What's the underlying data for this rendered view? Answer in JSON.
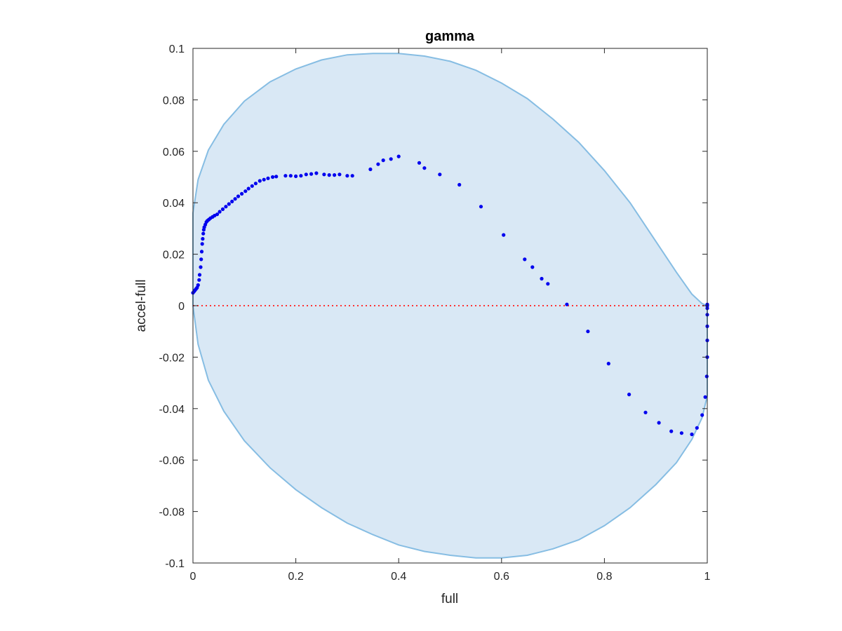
{
  "chart_data": {
    "type": "scatter",
    "title": "gamma",
    "xlabel": "full",
    "ylabel": "accel-full",
    "xlim": [
      0,
      1
    ],
    "ylim": [
      -0.1,
      0.1
    ],
    "xticks": [
      0,
      0.2,
      0.4,
      0.6,
      0.8,
      1
    ],
    "xtick_labels": [
      "0",
      "0.2",
      "0.4",
      "0.6",
      "0.8",
      "1"
    ],
    "yticks": [
      -0.1,
      -0.08,
      -0.06,
      -0.04,
      -0.02,
      0,
      0.02,
      0.04,
      0.06,
      0.08,
      0.1
    ],
    "ytick_labels": [
      "-0.1",
      "-0.08",
      "-0.06",
      "-0.04",
      "-0.02",
      "0",
      "0.02",
      "0.04",
      "0.06",
      "0.08",
      "0.1"
    ],
    "grid": false,
    "box": true,
    "colors": {
      "region_fill": "#d9e8f5",
      "region_edge": "#86bde3",
      "points": "#0000ee",
      "zero_line": "#ff3333",
      "axes": "#262626"
    },
    "region": {
      "name": "",
      "upper": {
        "x": [
          0,
          0.01,
          0.03,
          0.06,
          0.1,
          0.15,
          0.2,
          0.25,
          0.3,
          0.35,
          0.4,
          0.45,
          0.5,
          0.55,
          0.6,
          0.65,
          0.7,
          0.75,
          0.8,
          0.85,
          0.9,
          0.94,
          0.97,
          0.99,
          1
        ],
        "y": [
          0.036,
          0.049,
          0.0605,
          0.0705,
          0.0795,
          0.087,
          0.092,
          0.0955,
          0.0975,
          0.098,
          0.098,
          0.097,
          0.095,
          0.0915,
          0.0865,
          0.0805,
          0.0725,
          0.0635,
          0.0525,
          0.04,
          0.025,
          0.013,
          0.0045,
          0.0008,
          0
        ]
      },
      "lower": {
        "x": [
          0,
          0.01,
          0.03,
          0.06,
          0.1,
          0.15,
          0.2,
          0.25,
          0.3,
          0.35,
          0.4,
          0.45,
          0.5,
          0.55,
          0.6,
          0.65,
          0.7,
          0.75,
          0.8,
          0.85,
          0.9,
          0.94,
          0.97,
          0.99,
          1
        ],
        "y": [
          0,
          -0.015,
          -0.029,
          -0.041,
          -0.0525,
          -0.063,
          -0.0715,
          -0.0785,
          -0.0845,
          -0.089,
          -0.093,
          -0.0955,
          -0.097,
          -0.098,
          -0.098,
          -0.097,
          -0.0945,
          -0.091,
          -0.0855,
          -0.0785,
          -0.0695,
          -0.061,
          -0.052,
          -0.0435,
          -0.035
        ]
      }
    },
    "zero_line": {
      "y": 0,
      "style": "dotted"
    },
    "series": [
      {
        "name": "",
        "x": [
          0,
          0.002,
          0.004,
          0.006,
          0.008,
          0.01,
          0.012,
          0.013,
          0.015,
          0.016,
          0.017,
          0.018,
          0.019,
          0.02,
          0.021,
          0.022,
          0.024,
          0.026,
          0.028,
          0.031,
          0.034,
          0.038,
          0.042,
          0.047,
          0.052,
          0.058,
          0.064,
          0.07,
          0.076,
          0.082,
          0.088,
          0.095,
          0.102,
          0.108,
          0.115,
          0.122,
          0.13,
          0.138,
          0.146,
          0.155,
          0.162,
          0.18,
          0.19,
          0.2,
          0.21,
          0.22,
          0.23,
          0.24,
          0.255,
          0.265,
          0.275,
          0.285,
          0.3,
          0.31,
          0.345,
          0.36,
          0.37,
          0.385,
          0.4,
          0.44,
          0.45,
          0.48,
          0.518,
          0.56,
          0.604,
          0.645,
          0.66,
          0.678,
          0.69,
          0.727,
          0.768,
          0.808,
          0.848,
          0.88,
          0.906,
          0.93,
          0.95,
          0.97,
          0.98,
          0.99,
          0.996,
          0.999,
          1,
          1,
          1,
          1,
          1,
          1,
          1,
          1
        ],
        "y": [
          0.005,
          0.0055,
          0.006,
          0.0065,
          0.007,
          0.008,
          0.01,
          0.012,
          0.015,
          0.018,
          0.021,
          0.024,
          0.026,
          0.028,
          0.0295,
          0.0305,
          0.0315,
          0.0325,
          0.033,
          0.0335,
          0.034,
          0.0345,
          0.035,
          0.0355,
          0.0365,
          0.0375,
          0.0385,
          0.0395,
          0.0405,
          0.0415,
          0.0425,
          0.0435,
          0.0445,
          0.0455,
          0.0465,
          0.0475,
          0.0485,
          0.049,
          0.0495,
          0.05,
          0.0502,
          0.0505,
          0.0505,
          0.0503,
          0.0505,
          0.051,
          0.0512,
          0.0515,
          0.051,
          0.0508,
          0.0508,
          0.051,
          0.0505,
          0.0505,
          0.053,
          0.055,
          0.0565,
          0.057,
          0.058,
          0.0555,
          0.0535,
          0.051,
          0.047,
          0.0385,
          0.0275,
          0.018,
          0.015,
          0.0105,
          0.0085,
          0.0005,
          -0.01,
          -0.0225,
          -0.0345,
          -0.0415,
          -0.0455,
          -0.0488,
          -0.0495,
          -0.05,
          -0.0475,
          -0.0425,
          -0.0355,
          -0.0275,
          -0.02,
          -0.0135,
          -0.008,
          -0.0035,
          -0.001,
          0,
          0.0005,
          0
        ]
      }
    ]
  }
}
